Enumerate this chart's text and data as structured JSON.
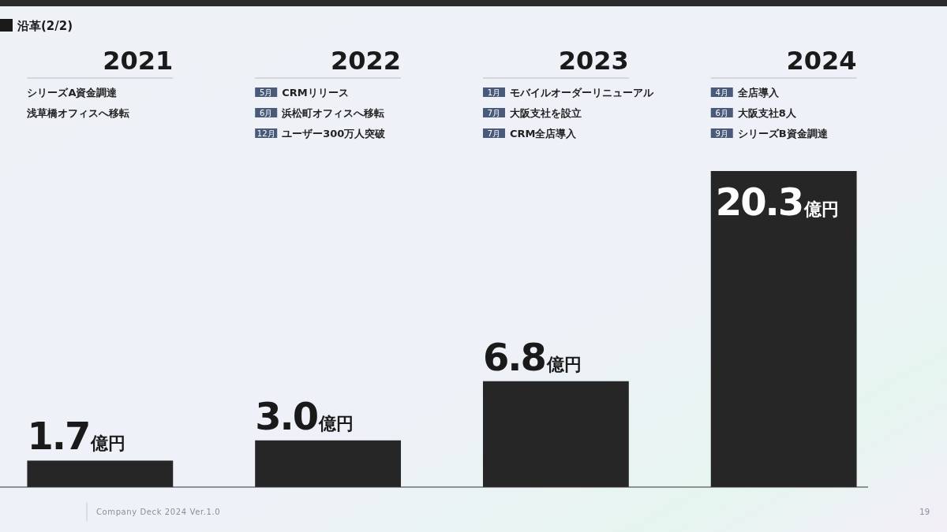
{
  "chart_data": {
    "type": "bar",
    "title": "沿革(2/2)",
    "categories": [
      "2021",
      "2022",
      "2023",
      "2024"
    ],
    "values": [
      1.7,
      3.0,
      6.8,
      20.3
    ],
    "value_labels": [
      "1.7億円",
      "3.0億円",
      "6.8億円",
      "20.3億円"
    ],
    "color": "#262626",
    "annotations": [
      "シリーズA資金調達",
      "浅草橋オフィスへ移転",
      "5月 CRMリリース",
      "6月 浜松町オフィスへ移転",
      "12月 ユーザー300万人突破",
      "1月 モバイルオーダーリニューアル",
      "7月 大阪支社を設立",
      "7月 CRM全店導入",
      "4月 全店導入",
      "6月 大阪支社8人",
      "9月 シリーズB資金調達",
      "Company Deck 2024 Ver.1.0",
      "19"
    ]
  }
}
